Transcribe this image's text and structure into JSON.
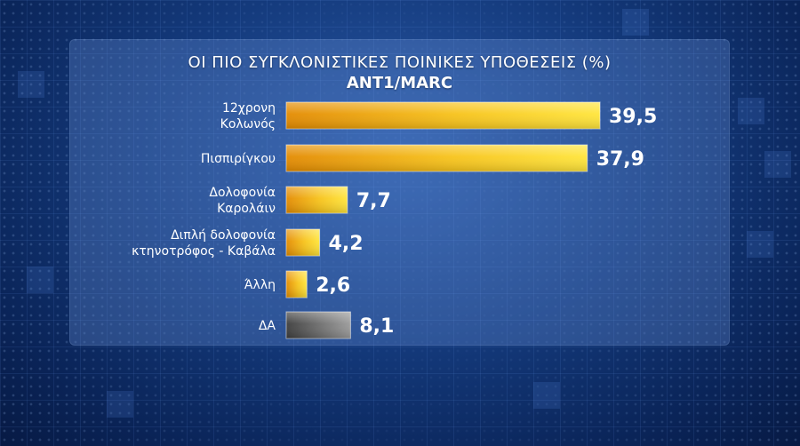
{
  "chart_data": {
    "type": "bar",
    "orientation": "horizontal",
    "title": "ΟΙ ΠΙΟ ΣΥΓΚΛΟΝΙΣΤΙΚΕΣ ΠΟΙΝΙΚΕΣ ΥΠΟΘΕΣΕΙΣ (%)",
    "subtitle": "ANT1/MARC",
    "categories": [
      [
        "12χρονη",
        "Κολωνός"
      ],
      [
        "Πισπιρίγκου"
      ],
      [
        "Δολοφονία",
        "Καρολάιν"
      ],
      [
        "Διπλή δολοφονία",
        "κτηνοτρόφος - Καβάλα"
      ],
      [
        "Άλλη"
      ],
      [
        "ΔΑ"
      ]
    ],
    "values": [
      39.5,
      37.9,
      7.7,
      4.2,
      2.6,
      8.1
    ],
    "value_labels": [
      "39,5",
      "37,9",
      "7,7",
      "4,2",
      "2,6",
      "8,1"
    ],
    "bar_styles": [
      "gold",
      "gold",
      "gold",
      "gold",
      "gold",
      "gray"
    ],
    "xlim": [
      0,
      39.5
    ],
    "grid": false
  },
  "colors": {
    "gold_light": "#ffe53a",
    "gold_dark": "#e38a00",
    "gray_light": "#9a9a9a",
    "gray_dark": "#3c3c3c"
  }
}
